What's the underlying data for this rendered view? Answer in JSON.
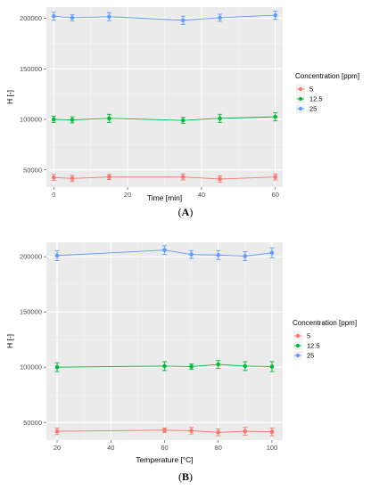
{
  "chart_data": [
    {
      "type": "line",
      "panel_label": "A",
      "xlabel": "Time [min]",
      "ylabel": "H [-]",
      "xlim": [
        -2,
        62
      ],
      "ylim": [
        33000,
        211000
      ],
      "x_ticks": [
        0,
        20,
        40,
        60
      ],
      "y_ticks": [
        50000,
        100000,
        150000,
        200000
      ],
      "grid": true,
      "error_bars": true,
      "legend": {
        "title": "Concentration [ppm]",
        "position": "right",
        "entries": [
          "5",
          "12.5",
          "25"
        ]
      },
      "series": [
        {
          "name": "5",
          "color": "#f8766d",
          "x": [
            0,
            5,
            15,
            35,
            45,
            60
          ],
          "y": [
            42500,
            41500,
            43000,
            43000,
            41000,
            43000
          ],
          "err": [
            3000,
            3000,
            2500,
            3000,
            3000,
            3000
          ]
        },
        {
          "name": "12.5",
          "color": "#00ba38",
          "x": [
            0,
            5,
            15,
            35,
            45,
            60
          ],
          "y": [
            100000,
            99500,
            101000,
            99000,
            101000,
            102500
          ],
          "err": [
            3000,
            3000,
            4000,
            3000,
            4000,
            4000
          ]
        },
        {
          "name": "25",
          "color": "#619cff",
          "x": [
            0,
            5,
            15,
            35,
            45,
            60
          ],
          "y": [
            202000,
            200500,
            201500,
            198000,
            200500,
            203000
          ],
          "err": [
            4000,
            3000,
            4000,
            4000,
            3500,
            4000
          ]
        }
      ]
    },
    {
      "type": "line",
      "panel_label": "B",
      "xlabel": "Temperature [°C]",
      "ylabel": "H [-]",
      "xlim": [
        16,
        104
      ],
      "ylim": [
        34000,
        213000
      ],
      "x_ticks": [
        20,
        40,
        60,
        80,
        100
      ],
      "y_ticks": [
        50000,
        100000,
        150000,
        200000
      ],
      "grid": true,
      "error_bars": true,
      "legend": {
        "title": "Concentration [ppm]",
        "position": "right",
        "entries": [
          "5",
          "12.5",
          "25"
        ]
      },
      "series": [
        {
          "name": "5",
          "color": "#f8766d",
          "x": [
            20,
            60,
            70,
            80,
            90,
            100
          ],
          "y": [
            42000,
            43000,
            42500,
            41000,
            42000,
            41500
          ],
          "err": [
            3000,
            2000,
            3000,
            3000,
            3500,
            3500
          ]
        },
        {
          "name": "12.5",
          "color": "#00ba38",
          "x": [
            20,
            60,
            70,
            80,
            90,
            100
          ],
          "y": [
            100000,
            101000,
            100500,
            102500,
            101000,
            100500
          ],
          "err": [
            4000,
            4000,
            2500,
            3500,
            4000,
            4500
          ]
        },
        {
          "name": "25",
          "color": "#619cff",
          "x": [
            20,
            60,
            70,
            80,
            90,
            100
          ],
          "y": [
            201000,
            206000,
            202000,
            201500,
            200500,
            203500
          ],
          "err": [
            4500,
            4000,
            3500,
            4000,
            4000,
            4500
          ]
        }
      ]
    }
  ]
}
